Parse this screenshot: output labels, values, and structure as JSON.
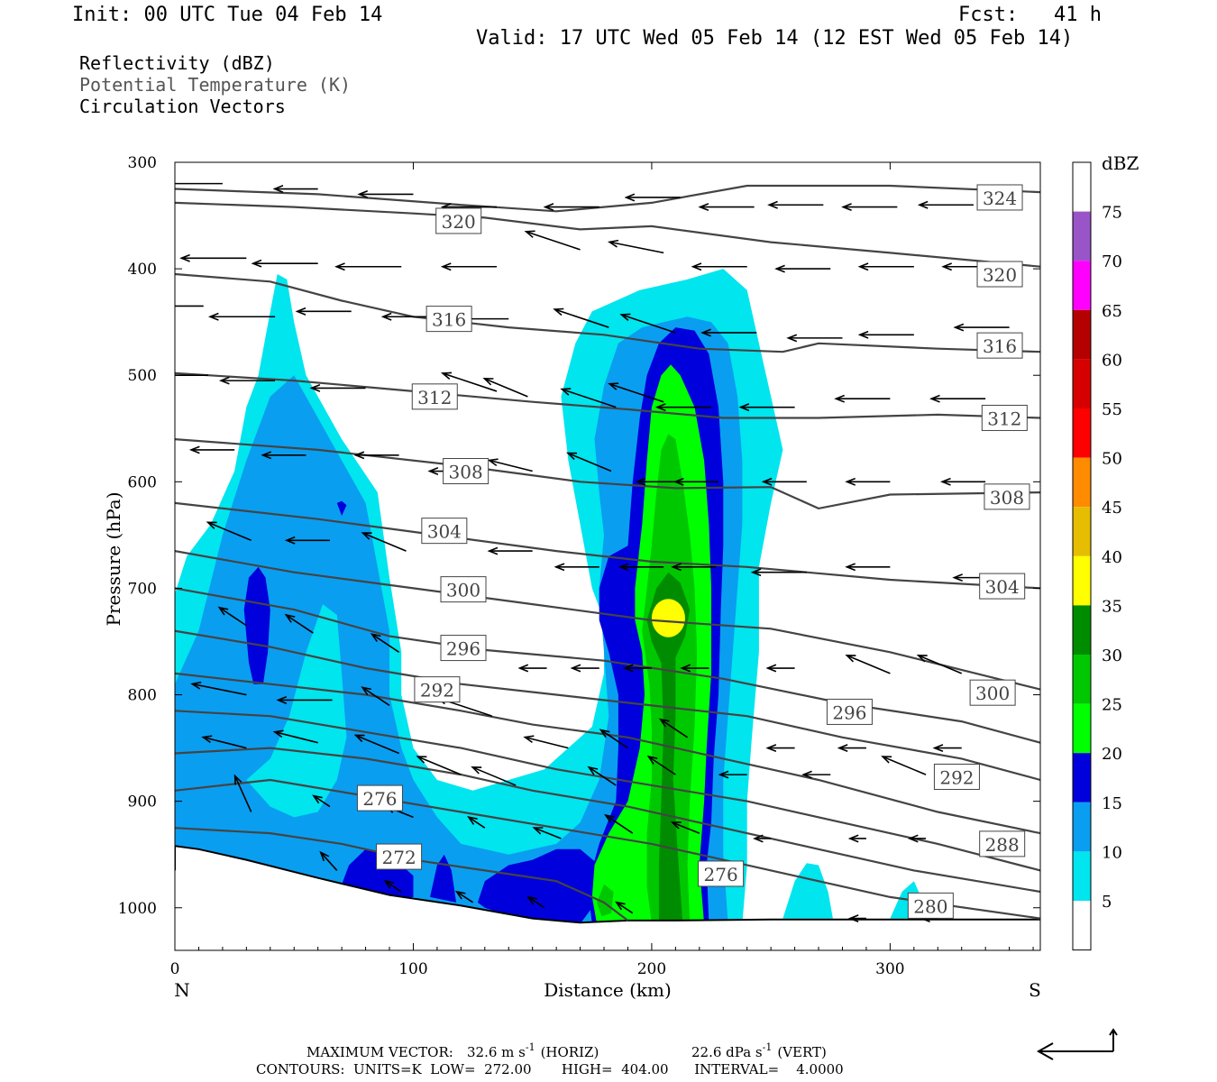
{
  "header": {
    "init": "Init: 00 UTC Tue 04 Feb 14",
    "fcst": "Fcst:   41 h",
    "valid": "Valid: 17 UTC Wed 05 Feb 14 (12 EST Wed 05 Feb 14)"
  },
  "fields": {
    "line1": "Reflectivity (dBZ)",
    "line2": "Potential Temperature (K)",
    "line3": "Circulation Vectors"
  },
  "footer": {
    "max_label": "MAXIMUM VECTOR:",
    "max_horiz": "32.6 m s",
    "max_horiz_sup": "-1",
    "max_horiz_tag": "(HORIZ)",
    "max_vert": "22.6 dPa s",
    "max_vert_sup": "-1",
    "max_vert_tag": "(VERT)",
    "contours": "CONTOURS:  UNITS=K  LOW=  272.00       HIGH=  404.00      INTERVAL=    4.0000"
  },
  "chart_data": {
    "type": "cross-section (filled contour + line contour + vectors)",
    "xlabel": "Distance (km)",
    "ylabel": "Pressure (hPa)",
    "x_left_label": "N",
    "x_right_label": "S",
    "xlim": [
      0,
      363
    ],
    "ylim": [
      1040,
      300
    ],
    "x_ticks": [
      0,
      100,
      200,
      300
    ],
    "y_ticks": [
      300,
      400,
      500,
      600,
      700,
      800,
      900,
      1000
    ],
    "colorbar": {
      "title": "dBZ",
      "levels": [
        5,
        10,
        15,
        20,
        25,
        30,
        35,
        40,
        45,
        50,
        55,
        60,
        65,
        70,
        75
      ],
      "colors": [
        "#ffffff",
        "#00e5ee",
        "#0a9ef0",
        "#0000dc",
        "#00ff00",
        "#00c800",
        "#008c00",
        "#ffff00",
        "#e6bd00",
        "#ff8c00",
        "#ff0000",
        "#d70000",
        "#b40000",
        "#ff00ff",
        "#9955c8",
        "#ffffff"
      ]
    },
    "theta_labels": [
      {
        "value": "324",
        "x": 346,
        "p": 333
      },
      {
        "value": "320",
        "x": 119,
        "p": 355
      },
      {
        "value": "320",
        "x": 346,
        "p": 405
      },
      {
        "value": "316",
        "x": 115,
        "p": 447
      },
      {
        "value": "316",
        "x": 346,
        "p": 472
      },
      {
        "value": "312",
        "x": 109,
        "p": 520
      },
      {
        "value": "312",
        "x": 348,
        "p": 540
      },
      {
        "value": "308",
        "x": 122,
        "p": 590
      },
      {
        "value": "308",
        "x": 349,
        "p": 614
      },
      {
        "value": "304",
        "x": 113,
        "p": 646
      },
      {
        "value": "304",
        "x": 347,
        "p": 698
      },
      {
        "value": "300",
        "x": 121,
        "p": 701
      },
      {
        "value": "300",
        "x": 343,
        "p": 798
      },
      {
        "value": "296",
        "x": 121,
        "p": 756
      },
      {
        "value": "296",
        "x": 283,
        "p": 816
      },
      {
        "value": "292",
        "x": 110,
        "p": 795
      },
      {
        "value": "292",
        "x": 328,
        "p": 877
      },
      {
        "value": "288",
        "x": 347,
        "p": 940
      },
      {
        "value": "280",
        "x": 317,
        "p": 998
      },
      {
        "value": "276",
        "x": 86,
        "p": 897
      },
      {
        "value": "276",
        "x": 229,
        "p": 968
      },
      {
        "value": "272",
        "x": 94,
        "p": 952
      }
    ],
    "reflectivity_max_dbz": 35,
    "reflectivity_max_location": {
      "x": 207,
      "p": 728
    }
  }
}
